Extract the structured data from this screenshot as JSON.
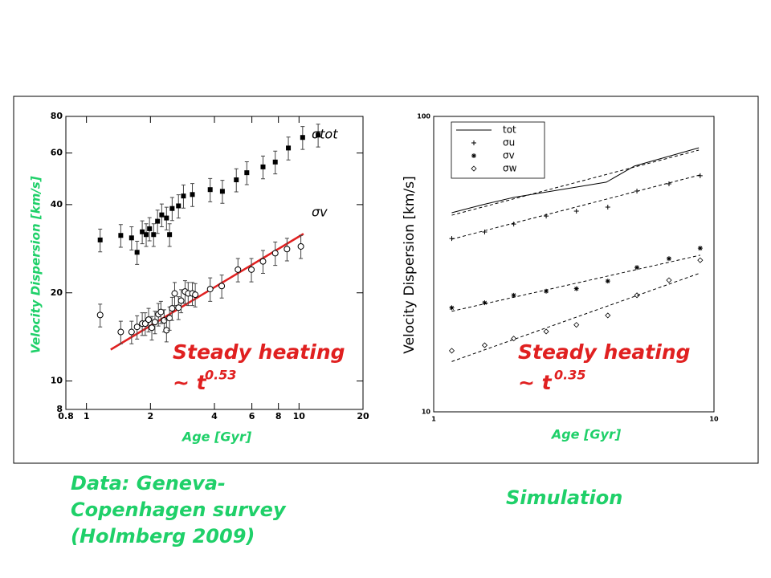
{
  "chart_data": [
    {
      "type": "scatter",
      "log": true,
      "x_label": "Age [Gyr]",
      "y_label": "Velocity Dispersion [km/s]",
      "xlim": [
        0.8,
        20
      ],
      "ylim": [
        8,
        80
      ],
      "xticks": [
        0.8,
        1,
        2,
        4,
        6,
        8,
        10,
        20
      ],
      "yticks": [
        8,
        10,
        20,
        40,
        60,
        80
      ],
      "series": [
        {
          "name": "σtot",
          "marker": "square",
          "color": "#000000",
          "x": [
            1.16,
            1.45,
            1.63,
            1.73,
            1.83,
            1.91,
            1.98,
            2.07,
            2.16,
            2.26,
            2.38,
            2.46,
            2.53,
            2.71,
            2.86,
            3.15,
            3.82,
            4.36,
            5.07,
            5.68,
            6.77,
            7.73,
            8.91,
            10.4,
            12.3
          ],
          "values": [
            30.3,
            31.4,
            30.8,
            27.5,
            32.3,
            31.6,
            33.1,
            31.6,
            35.1,
            36.9,
            36.0,
            31.6,
            38.8,
            39.6,
            42.8,
            43.3,
            45.0,
            44.4,
            48.6,
            51.4,
            53.8,
            55.9,
            62.4,
            67.8,
            69.1
          ],
          "errors": [
            2.7,
            2.8,
            2.8,
            2.5,
            2.9,
            2.8,
            3.0,
            2.8,
            3.2,
            3.3,
            3.2,
            2.8,
            3.5,
            3.6,
            3.9,
            3.9,
            4.1,
            4.0,
            4.4,
            4.6,
            4.8,
            5.0,
            5.6,
            6.1,
            6.2
          ]
        },
        {
          "name": "σv",
          "marker": "circle",
          "color": "#000000",
          "x": [
            1.16,
            1.45,
            1.63,
            1.73,
            1.83,
            1.89,
            1.96,
            2.03,
            2.1,
            2.18,
            2.24,
            2.32,
            2.38,
            2.46,
            2.53,
            2.6,
            2.71,
            2.79,
            2.91,
            3.01,
            3.15,
            3.25,
            3.82,
            4.33,
            5.16,
            5.97,
            6.77,
            7.73,
            8.78,
            10.2
          ],
          "values": [
            16.8,
            14.7,
            14.7,
            15.3,
            15.7,
            15.7,
            16.2,
            15.2,
            15.9,
            16.9,
            17.2,
            16.1,
            14.9,
            16.4,
            17.7,
            19.9,
            17.8,
            18.8,
            20.2,
            19.9,
            19.9,
            19.7,
            20.6,
            21.1,
            24.0,
            24.0,
            25.6,
            27.3,
            28.2,
            28.8
          ],
          "errors": [
            1.5,
            1.3,
            1.3,
            1.4,
            1.4,
            1.4,
            1.5,
            1.4,
            1.4,
            1.5,
            1.5,
            1.4,
            1.3,
            1.5,
            1.6,
            1.8,
            1.6,
            1.7,
            1.8,
            1.8,
            1.8,
            1.8,
            1.9,
            1.9,
            2.2,
            2.2,
            2.3,
            2.5,
            2.5,
            2.6
          ]
        }
      ],
      "fit": {
        "x": [
          1.3,
          10.5
        ],
        "values": [
          12.8,
          31.8
        ],
        "color": "#e02020"
      },
      "annotations": [
        "Steady heating",
        "~ t",
        "0.53"
      ]
    },
    {
      "type": "line",
      "log": true,
      "x_label": "Age [Gyr]",
      "y_label": "Velocity Dispersion [km/s]",
      "xlim": [
        1,
        10
      ],
      "ylim": [
        10,
        100
      ],
      "xticks": [
        1,
        10
      ],
      "yticks": [
        10,
        100
      ],
      "series": [
        {
          "name": "tot",
          "marker": "none",
          "color": "#000000",
          "x": [
            1.16,
            1.49,
            1.93,
            2.87,
            4.13,
            5.2,
            8.83
          ],
          "values": [
            47.2,
            50.2,
            53.2,
            56.6,
            59.9,
            67.9,
            78.3
          ],
          "model_x": [
            1.16,
            8.83
          ],
          "model_values": [
            46.3,
            76.9
          ]
        },
        {
          "name": "σu",
          "marker": "plus",
          "color": "#000000",
          "x": [
            1.16,
            1.52,
            1.93,
            2.52,
            3.23,
            4.18,
            5.31,
            6.91,
            8.93
          ],
          "values": [
            38.6,
            40.6,
            43.2,
            46.0,
            47.8,
            49.3,
            55.9,
            59.1,
            63.0
          ],
          "model_x": [
            1.16,
            8.93
          ],
          "model_values": [
            38.4,
            63.4
          ]
        },
        {
          "name": "σv",
          "marker": "star",
          "color": "#000000",
          "x": [
            1.16,
            1.52,
            1.93,
            2.52,
            3.23,
            4.18,
            5.31,
            6.91,
            8.93
          ],
          "values": [
            22.5,
            23.4,
            24.8,
            25.6,
            26.1,
            27.7,
            30.8,
            33.0,
            35.8
          ],
          "model_x": [
            1.16,
            8.93
          ],
          "model_values": [
            21.9,
            33.9
          ]
        },
        {
          "name": "σw",
          "marker": "diamond",
          "color": "#000000",
          "x": [
            1.16,
            1.52,
            1.93,
            2.52,
            3.23,
            4.18,
            5.31,
            6.91,
            8.93
          ],
          "values": [
            16.1,
            16.8,
            17.7,
            18.7,
            19.7,
            21.2,
            24.8,
            27.9,
            32.6
          ],
          "model_x": [
            1.16,
            8.93
          ],
          "model_values": [
            14.8,
            29.5
          ]
        }
      ],
      "annotations": [
        "Steady heating",
        "~ t",
        "0.35"
      ]
    }
  ],
  "captions": [
    "Data: Geneva-",
    "Copenhagen survey",
    "(Holmberg 2009)",
    "Simulation"
  ]
}
